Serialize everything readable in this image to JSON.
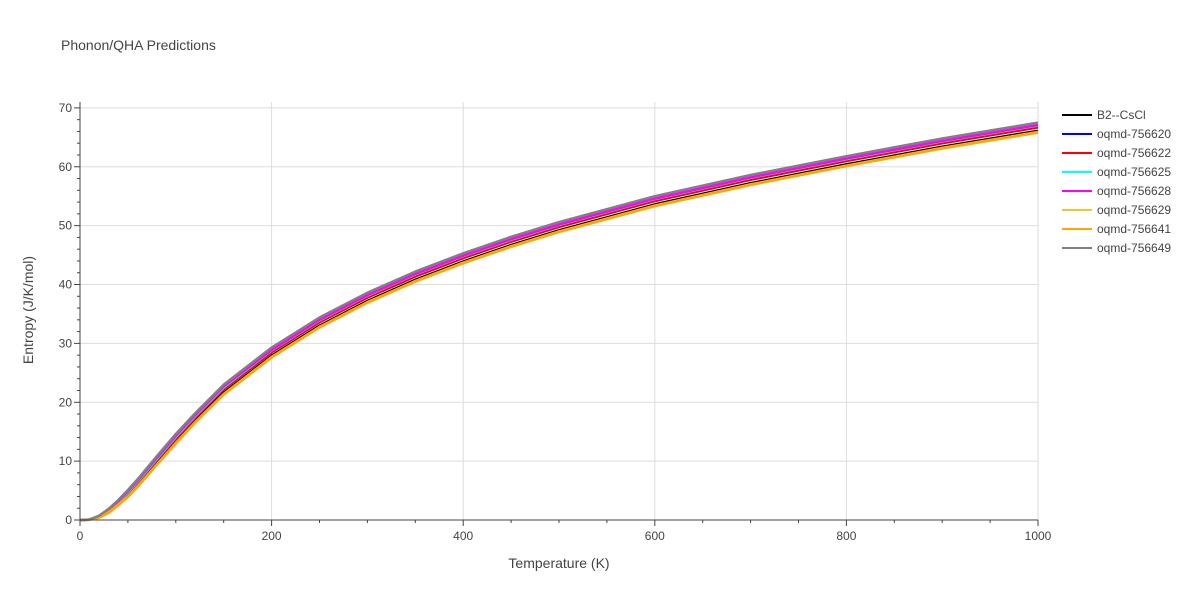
{
  "chart_data": {
    "type": "line",
    "title": "Phonon/QHA Predictions",
    "xlabel": "Temperature (K)",
    "ylabel": "Entropy (J/K/mol)",
    "xlim": [
      0,
      1000
    ],
    "ylim": [
      0,
      71
    ],
    "x_ticks": [
      0,
      200,
      400,
      600,
      800,
      1000
    ],
    "y_ticks": [
      0,
      10,
      20,
      30,
      40,
      50,
      60,
      70
    ],
    "grid": true,
    "legend_position": "right",
    "x": [
      0,
      10,
      20,
      30,
      40,
      50,
      60,
      80,
      100,
      120,
      150,
      200,
      250,
      300,
      350,
      400,
      450,
      500,
      600,
      700,
      800,
      900,
      1000
    ],
    "series": [
      {
        "name": "B2--CsCl",
        "color": "#000000",
        "values": [
          0,
          0.05,
          0.5,
          1.4,
          2.7,
          4.2,
          5.9,
          9.6,
          13.3,
          16.8,
          21.6,
          27.9,
          33.0,
          37.2,
          40.8,
          43.9,
          46.7,
          49.2,
          53.6,
          57.2,
          60.4,
          63.4,
          66.1
        ]
      },
      {
        "name": "oqmd-756620",
        "color": "#0000ff",
        "values": [
          0,
          0.06,
          0.6,
          1.6,
          3.0,
          4.6,
          6.3,
          10.1,
          13.8,
          17.3,
          22.2,
          28.5,
          33.6,
          37.8,
          41.4,
          44.5,
          47.3,
          49.8,
          54.2,
          57.8,
          61.0,
          64.0,
          66.7
        ]
      },
      {
        "name": "oqmd-756622",
        "color": "#ff0000",
        "values": [
          0,
          0.06,
          0.6,
          1.6,
          3.0,
          4.6,
          6.3,
          10.1,
          13.8,
          17.3,
          22.2,
          28.5,
          33.6,
          37.8,
          41.4,
          44.5,
          47.3,
          49.8,
          54.2,
          57.8,
          61.0,
          64.0,
          66.7
        ]
      },
      {
        "name": "oqmd-756625",
        "color": "#00ffff",
        "values": [
          0,
          0.06,
          0.65,
          1.7,
          3.1,
          4.7,
          6.5,
          10.3,
          14.1,
          17.6,
          22.5,
          28.8,
          33.9,
          38.1,
          41.7,
          44.8,
          47.6,
          50.1,
          54.5,
          58.1,
          61.3,
          64.3,
          67.0
        ]
      },
      {
        "name": "oqmd-756628",
        "color": "#ff00ff",
        "values": [
          0,
          0.07,
          0.7,
          1.8,
          3.2,
          4.9,
          6.7,
          10.5,
          14.3,
          17.8,
          22.7,
          28.9,
          34.0,
          38.2,
          41.8,
          44.9,
          47.7,
          50.2,
          54.6,
          58.2,
          61.4,
          64.4,
          67.1
        ]
      },
      {
        "name": "oqmd-756629",
        "color": "#f4c430",
        "values": [
          0,
          0.04,
          0.45,
          1.3,
          2.6,
          4.0,
          5.7,
          9.4,
          13.1,
          16.6,
          21.4,
          27.7,
          32.8,
          37.0,
          40.6,
          43.7,
          46.5,
          49.0,
          53.4,
          57.0,
          60.2,
          63.2,
          65.9
        ]
      },
      {
        "name": "oqmd-756641",
        "color": "#ffa500",
        "values": [
          0,
          0.04,
          0.4,
          1.2,
          2.5,
          3.9,
          5.6,
          9.3,
          13.0,
          16.5,
          21.3,
          27.6,
          32.7,
          36.9,
          40.5,
          43.6,
          46.4,
          48.9,
          53.3,
          56.9,
          60.1,
          63.1,
          65.8
        ]
      },
      {
        "name": "oqmd-756649",
        "color": "#808080",
        "values": [
          0,
          0.08,
          0.75,
          1.9,
          3.4,
          5.1,
          6.9,
          10.8,
          14.6,
          18.1,
          23.0,
          29.3,
          34.4,
          38.6,
          42.2,
          45.3,
          48.1,
          50.6,
          55.0,
          58.6,
          61.8,
          64.8,
          67.5
        ]
      }
    ]
  }
}
